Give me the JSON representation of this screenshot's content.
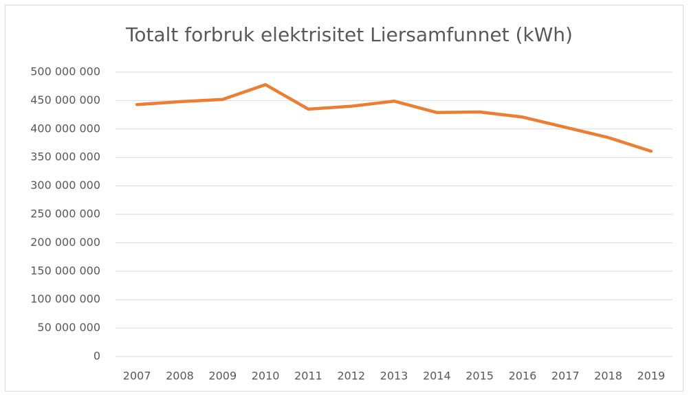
{
  "chart_data": {
    "type": "line",
    "title": "Totalt forbruk elektrisitet Liersamfunnet (kWh)",
    "categories": [
      "2007",
      "2008",
      "2009",
      "2010",
      "2011",
      "2012",
      "2013",
      "2014",
      "2015",
      "2016",
      "2017",
      "2018",
      "2019"
    ],
    "series": [
      {
        "name": "Totalt forbruk",
        "color": "#ed7d31",
        "values": [
          443000000,
          448000000,
          452000000,
          478000000,
          435000000,
          440000000,
          449000000,
          429000000,
          430000000,
          421000000,
          403000000,
          385000000,
          361000000
        ]
      }
    ],
    "ylim": [
      0,
      500000000
    ],
    "yticks": [
      0,
      {
        "value": 50000000,
        "label": "50 000 000"
      },
      {
        "value": 100000000,
        "label": "100 000 000"
      },
      {
        "value": 150000000,
        "label": "150 000 000"
      },
      {
        "value": 200000000,
        "label": "200 000 000"
      },
      {
        "value": 250000000,
        "label": "250 000 000"
      },
      {
        "value": 300000000,
        "label": "300 000 000"
      },
      {
        "value": 350000000,
        "label": "350 000 000"
      },
      {
        "value": 400000000,
        "label": "400 000 000"
      },
      {
        "value": 450000000,
        "label": "450 000 000"
      },
      {
        "value": 500000000,
        "label": "500 000 000"
      }
    ],
    "grid": true
  }
}
